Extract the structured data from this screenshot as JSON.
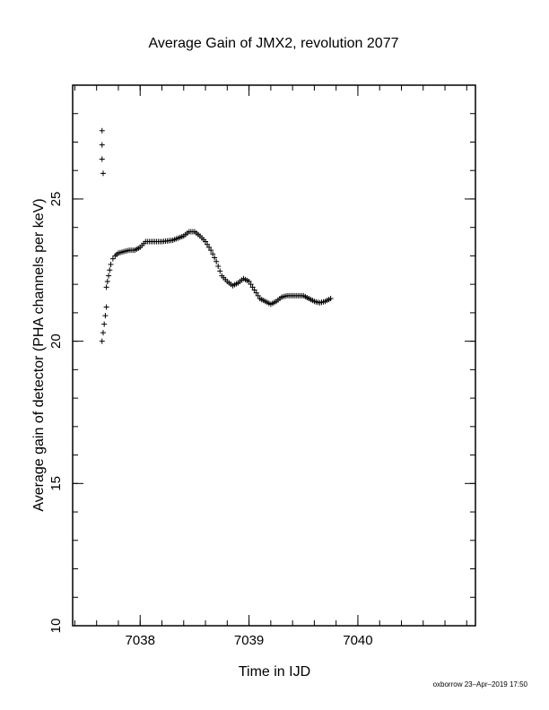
{
  "chart_data": {
    "type": "scatter",
    "title": "Average Gain of JMX2, revolution 2077",
    "xlabel": "Time in IJD",
    "ylabel": "Average gain of detector (PHA channels per keV)",
    "xlim": [
      7037.38,
      7041.08
    ],
    "ylim": [
      10,
      29
    ],
    "xticks": [
      7038,
      7039,
      7040
    ],
    "yticks": [
      10,
      15,
      20,
      25
    ],
    "x_minor_step": 0.2,
    "y_minor_step": 1,
    "grid": false,
    "marker": "+",
    "series": [
      {
        "points": [
          [
            7037.65,
            27.4
          ],
          [
            7037.65,
            26.9
          ],
          [
            7037.65,
            26.4
          ],
          [
            7037.66,
            25.9
          ],
          [
            7037.65,
            20.0
          ],
          [
            7037.66,
            20.3
          ],
          [
            7037.67,
            20.6
          ],
          [
            7037.68,
            20.9
          ],
          [
            7037.69,
            21.2
          ],
          [
            7037.69,
            21.9
          ],
          [
            7037.7,
            22.1
          ],
          [
            7037.71,
            22.3
          ],
          [
            7037.72,
            22.5
          ],
          [
            7037.73,
            22.7
          ],
          [
            7037.75,
            22.9
          ],
          [
            7037.77,
            23.0
          ],
          [
            7037.8,
            23.1
          ],
          [
            7037.85,
            23.15
          ],
          [
            7037.9,
            23.2
          ],
          [
            7037.95,
            23.2
          ],
          [
            7038.0,
            23.3
          ],
          [
            7038.05,
            23.5
          ],
          [
            7038.1,
            23.5
          ],
          [
            7038.2,
            23.5
          ],
          [
            7038.3,
            23.55
          ],
          [
            7038.4,
            23.7
          ],
          [
            7038.45,
            23.85
          ],
          [
            7038.5,
            23.85
          ],
          [
            7038.55,
            23.7
          ],
          [
            7038.6,
            23.5
          ],
          [
            7038.65,
            23.2
          ],
          [
            7038.7,
            22.8
          ],
          [
            7038.75,
            22.3
          ],
          [
            7038.8,
            22.1
          ],
          [
            7038.85,
            21.95
          ],
          [
            7038.9,
            22.05
          ],
          [
            7038.95,
            22.2
          ],
          [
            7039.0,
            22.1
          ],
          [
            7039.05,
            21.8
          ],
          [
            7039.1,
            21.5
          ],
          [
            7039.15,
            21.4
          ],
          [
            7039.2,
            21.3
          ],
          [
            7039.25,
            21.4
          ],
          [
            7039.3,
            21.55
          ],
          [
            7039.35,
            21.6
          ],
          [
            7039.4,
            21.6
          ],
          [
            7039.5,
            21.6
          ],
          [
            7039.55,
            21.5
          ],
          [
            7039.6,
            21.4
          ],
          [
            7039.65,
            21.35
          ],
          [
            7039.7,
            21.4
          ],
          [
            7039.75,
            21.5
          ]
        ]
      }
    ]
  },
  "footer": {
    "credit": "oxborrow 23–Apr–2019 17:50"
  }
}
